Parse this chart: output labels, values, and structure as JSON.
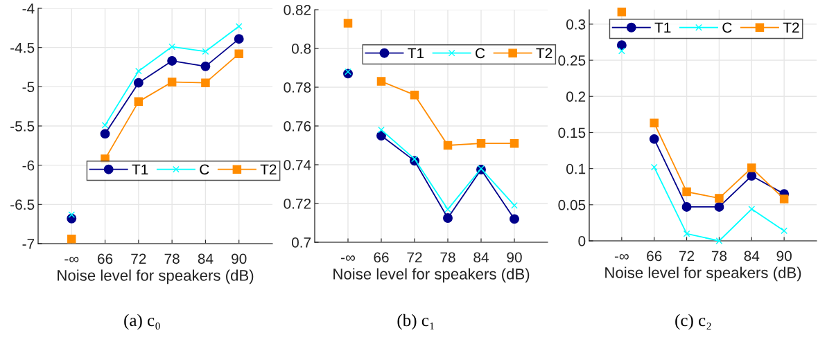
{
  "chart_data": [
    {
      "type": "line",
      "title": "(a) c₀",
      "xlabel": "Noise level for speakers (dB)",
      "categories": [
        "-∞",
        "66",
        "72",
        "78",
        "84",
        "90"
      ],
      "ylim": [
        -7,
        -4
      ],
      "yticks": [
        -7,
        -6.5,
        -6,
        -5.5,
        -5,
        -4.5,
        -4
      ],
      "grid": true,
      "legend": "center",
      "series": [
        {
          "name": "T1",
          "color": "#00008b",
          "marker": "circle",
          "values": [
            null,
            -5.6,
            -4.95,
            -4.67,
            -4.74,
            -4.39
          ]
        },
        {
          "name": "C",
          "color": "#00ffff",
          "marker": "cross",
          "values": [
            null,
            -5.49,
            -4.8,
            -4.49,
            -4.55,
            -4.23
          ]
        },
        {
          "name": "T2",
          "color": "#ff8c00",
          "marker": "square",
          "values": [
            null,
            -5.92,
            -5.19,
            -4.94,
            -4.95,
            -4.58
          ]
        },
        {
          "type": "scatter",
          "color": "#00008b",
          "marker": "circle",
          "values": [
            -6.68,
            null,
            null,
            null,
            null,
            null
          ]
        },
        {
          "type": "scatter",
          "color": "#00ffff",
          "marker": "cross",
          "values": [
            -6.63,
            null,
            null,
            null,
            null,
            null
          ]
        },
        {
          "type": "scatter",
          "color": "#ff8c00",
          "marker": "square",
          "values": [
            -6.94,
            null,
            null,
            null,
            null,
            null
          ]
        }
      ]
    },
    {
      "type": "line",
      "title": "(b) c₁",
      "xlabel": "Noise level for speakers (dB)",
      "categories": [
        "-∞",
        "66",
        "72",
        "78",
        "84",
        "90"
      ],
      "ylim": [
        0.7,
        0.82
      ],
      "yticks": [
        0.7,
        0.72,
        0.74,
        0.76,
        0.78,
        0.8,
        0.82
      ],
      "grid": true,
      "legend": "top",
      "series": [
        {
          "name": "T1",
          "color": "#00008b",
          "marker": "circle",
          "values": [
            null,
            0.755,
            0.742,
            0.7125,
            0.7375,
            0.712
          ]
        },
        {
          "name": "C",
          "color": "#00ffff",
          "marker": "cross",
          "values": [
            null,
            0.758,
            0.743,
            0.717,
            0.738,
            0.719
          ]
        },
        {
          "name": "T2",
          "color": "#ff8c00",
          "marker": "square",
          "values": [
            null,
            0.783,
            0.776,
            0.75,
            0.751,
            0.751
          ]
        },
        {
          "type": "scatter",
          "color": "#00008b",
          "marker": "circle",
          "values": [
            0.787,
            null,
            null,
            null,
            null,
            null
          ]
        },
        {
          "type": "scatter",
          "color": "#00ffff",
          "marker": "cross",
          "values": [
            0.788,
            null,
            null,
            null,
            null,
            null
          ]
        },
        {
          "type": "scatter",
          "color": "#ff8c00",
          "marker": "square",
          "values": [
            0.813,
            null,
            null,
            null,
            null,
            null
          ]
        }
      ]
    },
    {
      "type": "line",
      "title": "(c) c₂",
      "xlabel": "Noise level for speakers (dB)",
      "categories": [
        "-∞",
        "66",
        "72",
        "78",
        "84",
        "90"
      ],
      "ylim": [
        0,
        0.32
      ],
      "yticks": [
        0,
        0.05,
        0.1,
        0.15,
        0.2,
        0.25,
        0.3
      ],
      "grid": true,
      "legend": "top right",
      "series": [
        {
          "name": "T1",
          "color": "#00008b",
          "marker": "circle",
          "values": [
            null,
            0.141,
            0.047,
            0.047,
            0.09,
            0.065
          ]
        },
        {
          "name": "C",
          "color": "#00ffff",
          "marker": "cross",
          "values": [
            null,
            0.102,
            0.01,
            0,
            0.044,
            0.014
          ]
        },
        {
          "name": "T2",
          "color": "#ff8c00",
          "marker": "square",
          "values": [
            null,
            0.163,
            0.068,
            0.059,
            0.101,
            0.058
          ]
        },
        {
          "type": "scatter",
          "color": "#00008b",
          "marker": "circle",
          "values": [
            0.271,
            null,
            null,
            null,
            null,
            null
          ]
        },
        {
          "type": "scatter",
          "color": "#00ffff",
          "marker": "cross",
          "values": [
            0.263,
            null,
            null,
            null,
            null,
            null
          ]
        },
        {
          "type": "scatter",
          "color": "#ff8c00",
          "marker": "square",
          "values": [
            0.317,
            null,
            null,
            null,
            null,
            null
          ]
        }
      ]
    }
  ]
}
